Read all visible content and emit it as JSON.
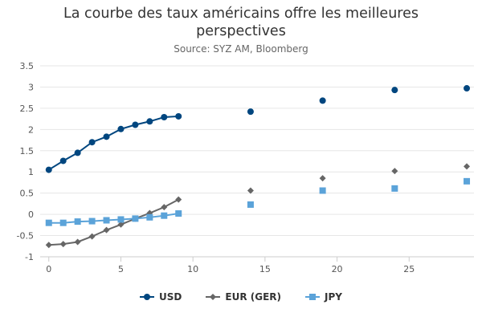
{
  "title_lines": [
    "La courbe des taux américains offre les meilleures",
    "perspectives"
  ],
  "subtitle": "Source: SYZ AM, Bloomberg",
  "chart_data": {
    "type": "line",
    "title": "La courbe des taux américains offre les meilleures perspectives",
    "subtitle": "Source: SYZ AM, Bloomberg",
    "xlabel": "",
    "ylabel": "",
    "xlim": [
      -0.6,
      29.5
    ],
    "ylim": [
      -1,
      3.5
    ],
    "x_ticks": [
      0,
      5,
      10,
      15,
      20,
      25
    ],
    "y_ticks": [
      -1,
      -0.5,
      0,
      0.5,
      1,
      1.5,
      2,
      2.5,
      3,
      3.5
    ],
    "grid": "horizontal",
    "legend_position": "bottom",
    "series": [
      {
        "name": "USD",
        "color": "#00467f",
        "marker": "circle",
        "x": [
          0,
          1,
          2,
          3,
          4,
          5,
          6,
          7,
          8,
          9,
          14,
          19,
          24,
          29
        ],
        "y": [
          1.05,
          1.26,
          1.45,
          1.7,
          1.83,
          2.01,
          2.11,
          2.19,
          2.29,
          2.31,
          2.42,
          2.68,
          2.93,
          2.97
        ],
        "connected_count": 10
      },
      {
        "name": "EUR (GER)",
        "color": "#666666",
        "marker": "diamond",
        "x": [
          0,
          1,
          2,
          3,
          4,
          5,
          6,
          7,
          8,
          9,
          14,
          19,
          24,
          29
        ],
        "y": [
          -0.72,
          -0.7,
          -0.65,
          -0.52,
          -0.37,
          -0.24,
          -0.1,
          0.03,
          0.17,
          0.35,
          0.56,
          0.85,
          1.02,
          1.13
        ],
        "connected_count": 10
      },
      {
        "name": "JPY",
        "color": "#5ba3d9",
        "marker": "square",
        "x": [
          0,
          1,
          2,
          3,
          4,
          5,
          6,
          7,
          8,
          9,
          14,
          19,
          24,
          29
        ],
        "y": [
          -0.2,
          -0.2,
          -0.17,
          -0.16,
          -0.14,
          -0.12,
          -0.1,
          -0.07,
          -0.03,
          0.02,
          0.23,
          0.56,
          0.61,
          0.78
        ],
        "connected_count": 10
      }
    ]
  }
}
